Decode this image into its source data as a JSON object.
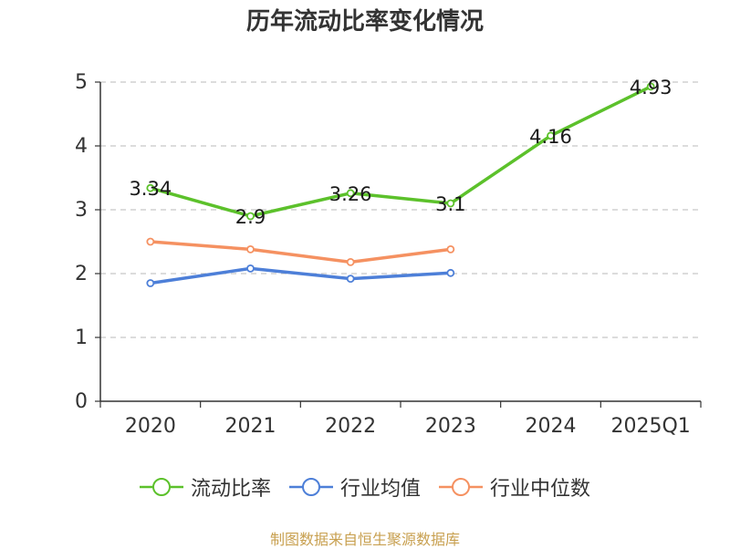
{
  "chart_data": {
    "type": "line",
    "title": "历年流动比率变化情况",
    "categories": [
      "2020",
      "2021",
      "2022",
      "2023",
      "2024",
      "2025Q1"
    ],
    "ylim": [
      0,
      5
    ],
    "yticks": [
      "0",
      "1",
      "2",
      "3",
      "4",
      "5"
    ],
    "grid": true,
    "legend_position": "bottom",
    "series": [
      {
        "name": "流动比率",
        "color": "#5cc12b",
        "values": [
          3.34,
          2.9,
          3.26,
          3.1,
          4.16,
          4.93
        ],
        "labels": [
          "3.34",
          "2.9",
          "3.26",
          "3.1",
          "4.16",
          "4.93"
        ]
      },
      {
        "name": "行业均值",
        "color": "#4d7fd8",
        "values": [
          1.85,
          2.08,
          1.92,
          2.01,
          null,
          null
        ]
      },
      {
        "name": "行业中位数",
        "color": "#f59161",
        "values": [
          2.5,
          2.38,
          2.18,
          2.38,
          null,
          null
        ]
      }
    ],
    "source": "制图数据来自恒生聚源数据库"
  }
}
